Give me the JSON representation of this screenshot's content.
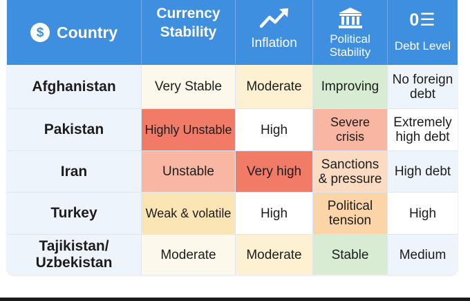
{
  "header": {
    "country": "Country",
    "currency": "Currency Stability",
    "inflation": "Inflation",
    "political": "Political Stability",
    "debt": "Debt Level",
    "debt_icon_text": "0☰"
  },
  "icons": {
    "country": "dollar-coin-icon",
    "inflation": "trend-up-arrow-icon",
    "political": "government-building-icon",
    "debt": "debt-level-icon"
  },
  "rows": [
    {
      "country": "Afghanistan",
      "currency": "Very Stable",
      "inflation": "Moderate",
      "political": "Improving",
      "debt": "No foreign debt"
    },
    {
      "country": "Pakistan",
      "currency": "Highly Unstable",
      "inflation": "High",
      "political": "Severe crisis",
      "debt": "Extremely high debt"
    },
    {
      "country": "Iran",
      "currency": "Unstable",
      "inflation": "Very high",
      "political": "Sanctions & pressure",
      "debt": "High debt"
    },
    {
      "country": "Turkey",
      "currency": "Weak & volatile",
      "inflation": "High",
      "political": "Political tension",
      "debt": "High"
    },
    {
      "country": "Tajikistan/ Uzbekistan",
      "currency": "Moderate",
      "inflation": "Moderate",
      "political": "Stable",
      "debt": "Medium"
    }
  ],
  "colors": {
    "header_blue": "#3f8fe0",
    "severe_red": "#f27b68",
    "salmon": "#f9b6a3",
    "caution_yellow": "#fbe5b4",
    "stable_green": "#d8ecd4"
  }
}
